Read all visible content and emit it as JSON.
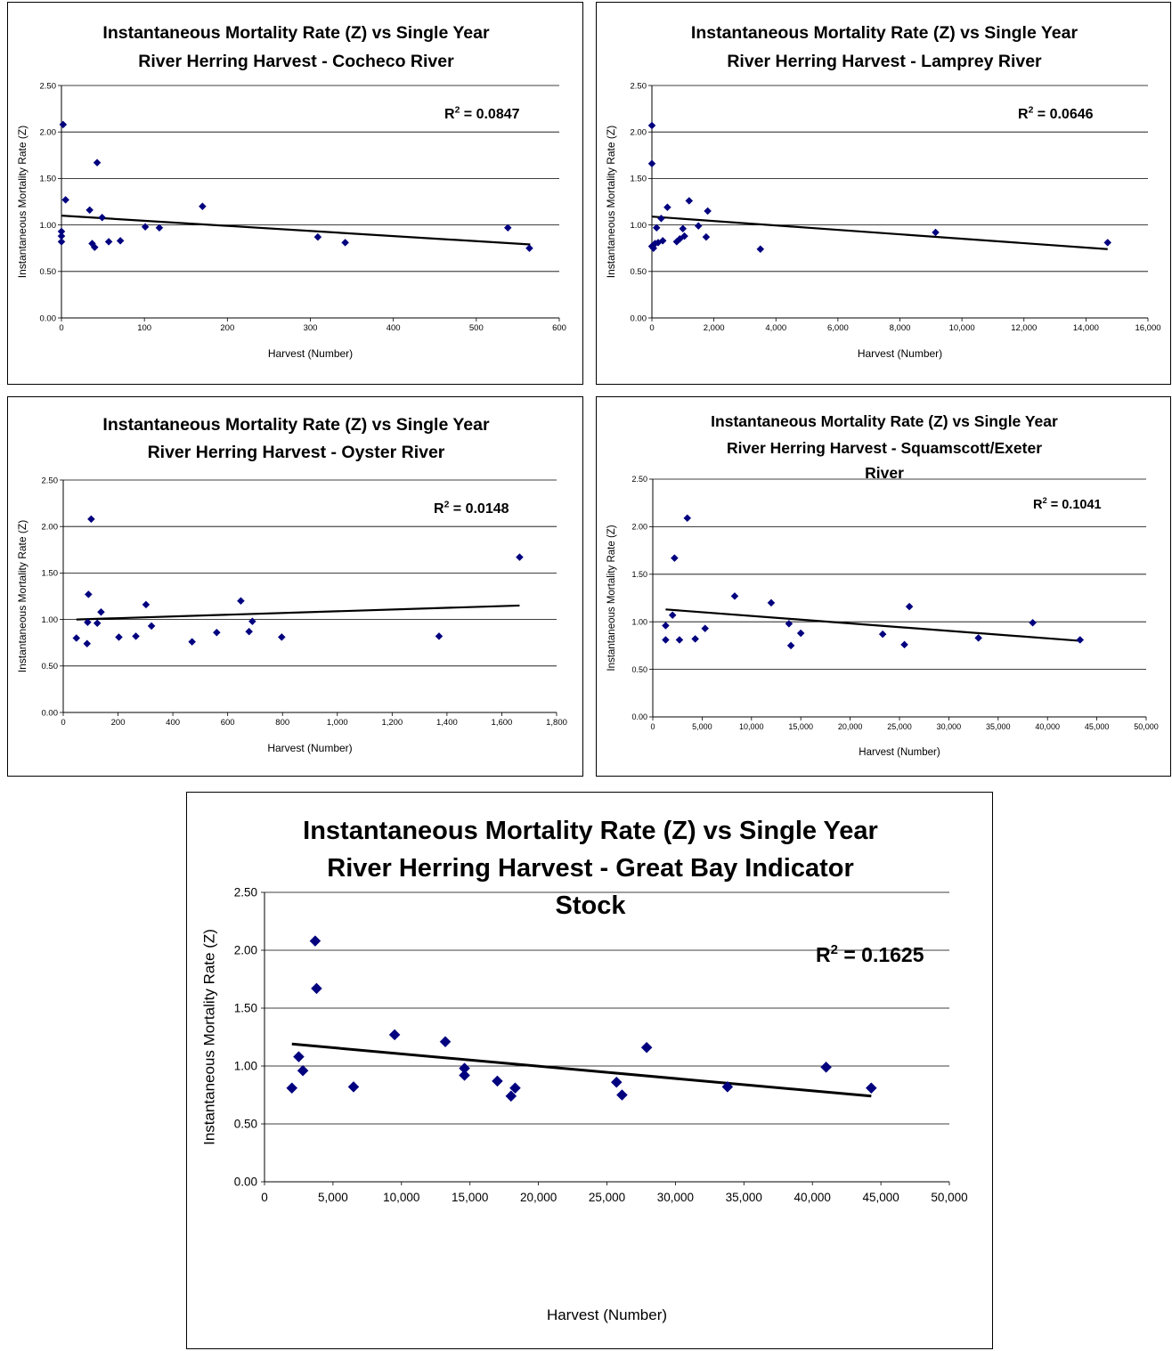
{
  "chart_data": [
    {
      "type": "scatter",
      "title_lines": [
        "Instantaneous Mortality Rate (Z) vs Single Year",
        "River Herring Harvest - Cocheco River"
      ],
      "xlabel": "Harvest (Number)",
      "ylabel": "Instantaneous Mortality Rate (Z)",
      "xlim": [
        0,
        600
      ],
      "ylim": [
        0,
        2.5
      ],
      "xticks": [
        0,
        100,
        200,
        300,
        400,
        500,
        600
      ],
      "xtick_labels": [
        "0",
        "100",
        "200",
        "300",
        "400",
        "500",
        "600"
      ],
      "yticks": [
        0,
        0.5,
        1.0,
        1.5,
        2.0,
        2.5
      ],
      "ytick_labels": [
        "0.00",
        "0.50",
        "1.00",
        "1.50",
        "2.00",
        "2.50"
      ],
      "grid": "horizontal",
      "marker_color": "#00007f",
      "points": [
        {
          "x": 2,
          "y": 2.08
        },
        {
          "x": 5,
          "y": 1.27
        },
        {
          "x": 0,
          "y": 0.93
        },
        {
          "x": 0,
          "y": 0.88
        },
        {
          "x": 0,
          "y": 0.82
        },
        {
          "x": 34,
          "y": 1.16
        },
        {
          "x": 37,
          "y": 0.8
        },
        {
          "x": 40,
          "y": 0.76
        },
        {
          "x": 43,
          "y": 1.67
        },
        {
          "x": 49,
          "y": 1.08
        },
        {
          "x": 57,
          "y": 0.82
        },
        {
          "x": 71,
          "y": 0.83
        },
        {
          "x": 101,
          "y": 0.98
        },
        {
          "x": 118,
          "y": 0.97
        },
        {
          "x": 170,
          "y": 1.2
        },
        {
          "x": 309,
          "y": 0.87
        },
        {
          "x": 342,
          "y": 0.81
        },
        {
          "x": 538,
          "y": 0.97
        },
        {
          "x": 564,
          "y": 0.75
        }
      ],
      "trendline": {
        "x": [
          0,
          565
        ],
        "y": [
          1.1,
          0.79
        ]
      },
      "r2_prefix": "R",
      "r2_sup": "2",
      "r2_value": " = 0.0847"
    },
    {
      "type": "scatter",
      "title_lines": [
        "Instantaneous Mortality Rate (Z) vs Single Year",
        "River Herring Harvest - Lamprey River"
      ],
      "xlabel": "Harvest (Number)",
      "ylabel": "Instantaneous Mortality Rate (Z)",
      "xlim": [
        0,
        16000
      ],
      "ylim": [
        0,
        2.5
      ],
      "xticks": [
        0,
        2000,
        4000,
        6000,
        8000,
        10000,
        12000,
        14000,
        16000
      ],
      "xtick_labels": [
        "0",
        "2,000",
        "4,000",
        "6,000",
        "8,000",
        "10,000",
        "12,000",
        "14,000",
        "16,000"
      ],
      "yticks": [
        0,
        0.5,
        1.0,
        1.5,
        2.0,
        2.5
      ],
      "ytick_labels": [
        "0.00",
        "0.50",
        "1.00",
        "1.50",
        "2.00",
        "2.50"
      ],
      "grid": "horizontal",
      "marker_color": "#00007f",
      "points": [
        {
          "x": 0,
          "y": 2.07
        },
        {
          "x": 0,
          "y": 1.66
        },
        {
          "x": 0,
          "y": 0.77
        },
        {
          "x": 50,
          "y": 0.75
        },
        {
          "x": 100,
          "y": 0.8
        },
        {
          "x": 150,
          "y": 0.97
        },
        {
          "x": 200,
          "y": 0.81
        },
        {
          "x": 300,
          "y": 1.07
        },
        {
          "x": 350,
          "y": 0.83
        },
        {
          "x": 500,
          "y": 1.19
        },
        {
          "x": 800,
          "y": 0.82
        },
        {
          "x": 900,
          "y": 0.85
        },
        {
          "x": 1000,
          "y": 0.96
        },
        {
          "x": 1050,
          "y": 0.88
        },
        {
          "x": 1200,
          "y": 1.26
        },
        {
          "x": 1500,
          "y": 0.99
        },
        {
          "x": 1750,
          "y": 0.87
        },
        {
          "x": 1800,
          "y": 1.15
        },
        {
          "x": 3500,
          "y": 0.74
        },
        {
          "x": 9150,
          "y": 0.92
        },
        {
          "x": 14700,
          "y": 0.81
        }
      ],
      "trendline": {
        "x": [
          0,
          14700
        ],
        "y": [
          1.09,
          0.74
        ]
      },
      "r2_prefix": "R",
      "r2_sup": "2",
      "r2_value": " = 0.0646"
    },
    {
      "type": "scatter",
      "title_lines": [
        "Instantaneous Mortality Rate (Z) vs Single Year",
        "River Herring Harvest - Oyster River"
      ],
      "xlabel": "Harvest (Number)",
      "ylabel": "Instantaneous Mortality Rate (Z)",
      "xlim": [
        0,
        1800
      ],
      "ylim": [
        0,
        2.5
      ],
      "xticks": [
        0,
        200,
        400,
        600,
        800,
        1000,
        1200,
        1400,
        1600,
        1800
      ],
      "xtick_labels": [
        "0",
        "200",
        "400",
        "600",
        "800",
        "1,000",
        "1,200",
        "1,400",
        "1,600",
        "1,800"
      ],
      "yticks": [
        0,
        0.5,
        1.0,
        1.5,
        2.0,
        2.5
      ],
      "ytick_labels": [
        "0.00",
        "0.50",
        "1.00",
        "1.50",
        "2.00",
        "2.50"
      ],
      "grid": "horizontal",
      "marker_color": "#00007f",
      "points": [
        {
          "x": 48,
          "y": 0.8
        },
        {
          "x": 87,
          "y": 0.74
        },
        {
          "x": 89,
          "y": 0.97
        },
        {
          "x": 92,
          "y": 1.27
        },
        {
          "x": 102,
          "y": 2.08
        },
        {
          "x": 124,
          "y": 0.96
        },
        {
          "x": 138,
          "y": 1.08
        },
        {
          "x": 203,
          "y": 0.81
        },
        {
          "x": 265,
          "y": 0.82
        },
        {
          "x": 302,
          "y": 1.16
        },
        {
          "x": 322,
          "y": 0.93
        },
        {
          "x": 470,
          "y": 0.76
        },
        {
          "x": 560,
          "y": 0.86
        },
        {
          "x": 648,
          "y": 1.2
        },
        {
          "x": 678,
          "y": 0.87
        },
        {
          "x": 690,
          "y": 0.98
        },
        {
          "x": 797,
          "y": 0.81
        },
        {
          "x": 1371,
          "y": 0.82
        },
        {
          "x": 1665,
          "y": 1.67
        }
      ],
      "trendline": {
        "x": [
          48,
          1665
        ],
        "y": [
          1.0,
          1.15
        ]
      },
      "r2_prefix": "R",
      "r2_sup": "2",
      "r2_value": " = 0.0148"
    },
    {
      "type": "scatter",
      "title_lines": [
        "Instantaneous Mortality Rate (Z) vs Single Year",
        "River Herring Harvest - Squamscott/Exeter",
        "River"
      ],
      "xlabel": "Harvest (Number)",
      "ylabel": "Instantaneous Mortality Rate (Z)",
      "xlim": [
        0,
        50000
      ],
      "ylim": [
        0,
        2.5
      ],
      "xticks": [
        0,
        5000,
        10000,
        15000,
        20000,
        25000,
        30000,
        35000,
        40000,
        45000,
        50000
      ],
      "xtick_labels": [
        "0",
        "5,000",
        "10,000",
        "15,000",
        "20,000",
        "25,000",
        "30,000",
        "35,000",
        "40,000",
        "45,000",
        "50,000"
      ],
      "yticks": [
        0,
        0.5,
        1.0,
        1.5,
        2.0,
        2.5
      ],
      "ytick_labels": [
        "0.00",
        "0.50",
        "1.00",
        "1.50",
        "2.00",
        "2.50"
      ],
      "grid": "horizontal",
      "marker_color": "#00007f",
      "points": [
        {
          "x": 1300,
          "y": 0.96
        },
        {
          "x": 1300,
          "y": 0.81
        },
        {
          "x": 2000,
          "y": 1.07
        },
        {
          "x": 2200,
          "y": 1.67
        },
        {
          "x": 2700,
          "y": 0.81
        },
        {
          "x": 3500,
          "y": 2.09
        },
        {
          "x": 4300,
          "y": 0.82
        },
        {
          "x": 5300,
          "y": 0.93
        },
        {
          "x": 8300,
          "y": 1.27
        },
        {
          "x": 12000,
          "y": 1.2
        },
        {
          "x": 13800,
          "y": 0.98
        },
        {
          "x": 14000,
          "y": 0.75
        },
        {
          "x": 15000,
          "y": 0.88
        },
        {
          "x": 23300,
          "y": 0.87
        },
        {
          "x": 25500,
          "y": 0.76
        },
        {
          "x": 26000,
          "y": 1.16
        },
        {
          "x": 33000,
          "y": 0.83
        },
        {
          "x": 38500,
          "y": 0.99
        },
        {
          "x": 43300,
          "y": 0.81
        }
      ],
      "trendline": {
        "x": [
          1300,
          43300
        ],
        "y": [
          1.13,
          0.8
        ]
      },
      "r2_prefix": "R",
      "r2_sup": "2",
      "r2_value": " = 0.1041"
    },
    {
      "type": "scatter",
      "title_lines": [
        "Instantaneous Mortality Rate (Z) vs Single Year",
        "River Herring Harvest - Great Bay Indicator",
        "Stock"
      ],
      "xlabel": "Harvest (Number)",
      "ylabel": "Instantaneous Mortality Rate (Z)",
      "xlim": [
        0,
        50000
      ],
      "ylim": [
        0,
        2.5
      ],
      "xticks": [
        0,
        5000,
        10000,
        15000,
        20000,
        25000,
        30000,
        35000,
        40000,
        45000,
        50000
      ],
      "xtick_labels": [
        "0",
        "5,000",
        "10,000",
        "15,000",
        "20,000",
        "25,000",
        "30,000",
        "35,000",
        "40,000",
        "45,000",
        "50,000"
      ],
      "yticks": [
        0,
        0.5,
        1.0,
        1.5,
        2.0,
        2.5
      ],
      "ytick_labels": [
        "0.00",
        "0.50",
        "1.00",
        "1.50",
        "2.00",
        "2.50"
      ],
      "grid": "horizontal",
      "marker_color": "#00007f",
      "points": [
        {
          "x": 2000,
          "y": 0.81
        },
        {
          "x": 2500,
          "y": 1.08
        },
        {
          "x": 2800,
          "y": 0.96
        },
        {
          "x": 3700,
          "y": 2.08
        },
        {
          "x": 3800,
          "y": 1.67
        },
        {
          "x": 6500,
          "y": 0.82
        },
        {
          "x": 9500,
          "y": 1.27
        },
        {
          "x": 13200,
          "y": 1.21
        },
        {
          "x": 14600,
          "y": 0.98
        },
        {
          "x": 14600,
          "y": 0.92
        },
        {
          "x": 17000,
          "y": 0.87
        },
        {
          "x": 18000,
          "y": 0.74
        },
        {
          "x": 18300,
          "y": 0.81
        },
        {
          "x": 25700,
          "y": 0.86
        },
        {
          "x": 26100,
          "y": 0.75
        },
        {
          "x": 27900,
          "y": 1.16
        },
        {
          "x": 33800,
          "y": 0.82
        },
        {
          "x": 41000,
          "y": 0.99
        },
        {
          "x": 44300,
          "y": 0.81
        }
      ],
      "trendline": {
        "x": [
          2000,
          44300
        ],
        "y": [
          1.19,
          0.74
        ]
      },
      "r2_prefix": "R",
      "r2_sup": "2",
      "r2_value": " = 0.1625"
    }
  ]
}
